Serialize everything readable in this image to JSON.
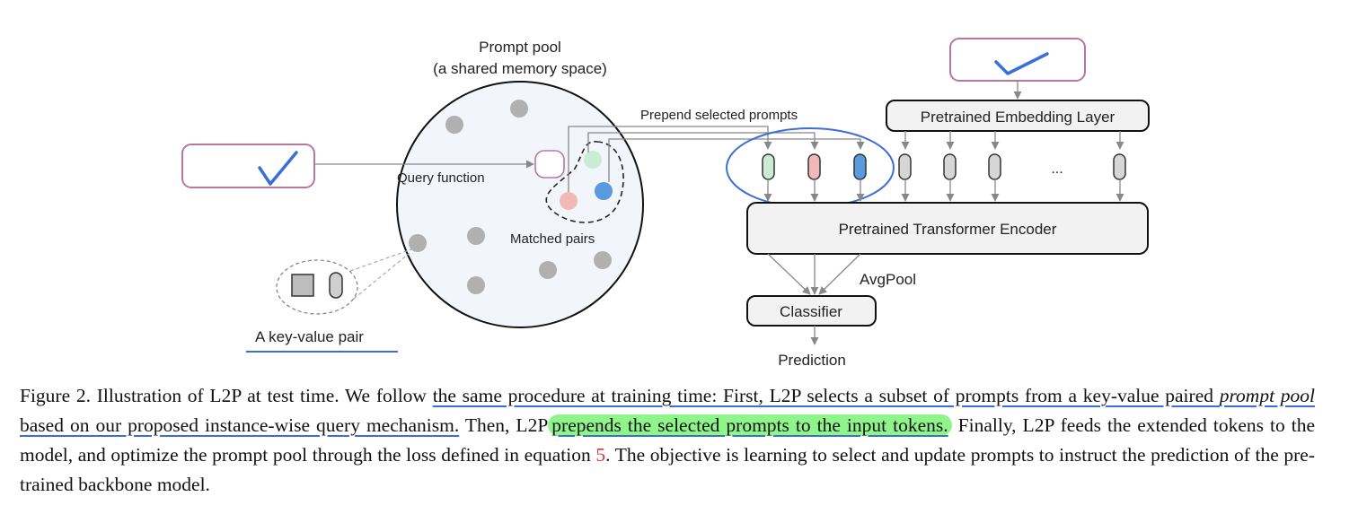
{
  "figure": {
    "pool_title_line1": "Prompt pool",
    "pool_title_line2": "(a shared memory space)",
    "query_function_label": "Query function",
    "matched_pairs_label": "Matched pairs",
    "key_value_pair_label": "A key-value pair",
    "prepend_label": "Prepend selected prompts",
    "embedding_layer_label": "Pretrained Embedding Layer",
    "encoder_label": "Pretrained Transformer Encoder",
    "avgpool_label": "AvgPool",
    "classifier_label": "Classifier",
    "prediction_label": "Prediction",
    "ellipsis": "...",
    "checkmark": "✓",
    "colors": {
      "input_box": "#b8789e",
      "pool_fill": "#f2f6fb",
      "gray_dot": "#b0b0b0",
      "prompt_green": "#c9ecd3",
      "prompt_red": "#f2b8b8",
      "prompt_blue": "#5a9be0",
      "annotation_blue": "#3a6fd8",
      "highlight_green": "#8ff58a"
    }
  },
  "caption": {
    "t1": "Figure 2. Illustration of L2P at test time. We follow ",
    "t2": "the same procedure at training time: First, L2P selects a subset of prompts from a key-value paired ",
    "t3": "prompt pool",
    "t4": " based on our proposed instance-wise query mechanism.",
    "t5": " Then, L2P",
    "t6": "prepends the selected prompts to the input tokens.",
    "t7": " Finally, L2P feeds the extended tokens to the model, and optimize the prompt pool through the loss defined in equation ",
    "t8": "5",
    "t9": ". The objective is learning to select and update prompts to instruct the prediction of the pre-trained backbone model."
  }
}
